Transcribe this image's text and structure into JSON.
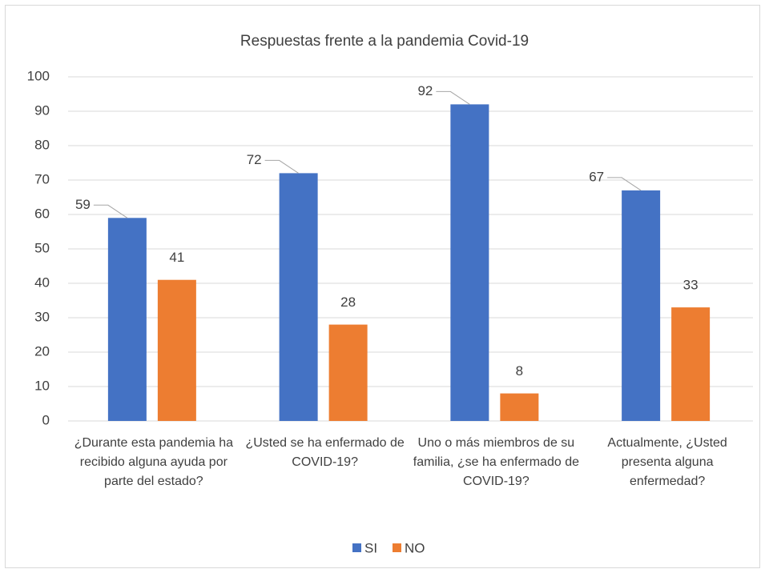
{
  "chart_data": {
    "type": "bar",
    "title": "Respuestas frente a la pandemia Covid-19",
    "categories": [
      "¿Durante esta pandemia ha recibido alguna ayuda por parte del estado?",
      "¿Usted se ha enfermado de COVID-19?",
      "Uno o más miembros de su familia, ¿se ha enfermado de COVID-19?",
      "Actualmente, ¿Usted presenta alguna enfermedad?"
    ],
    "series": [
      {
        "name": "SI",
        "color": "#4472c4",
        "values": [
          59,
          72,
          92,
          67
        ]
      },
      {
        "name": "NO",
        "color": "#ed7d31",
        "values": [
          41,
          28,
          8,
          33
        ]
      }
    ],
    "ylim": [
      0,
      100
    ],
    "yticks": [
      0,
      10,
      20,
      30,
      40,
      50,
      60,
      70,
      80,
      90,
      100
    ],
    "grid": true,
    "legend": "bottom"
  }
}
